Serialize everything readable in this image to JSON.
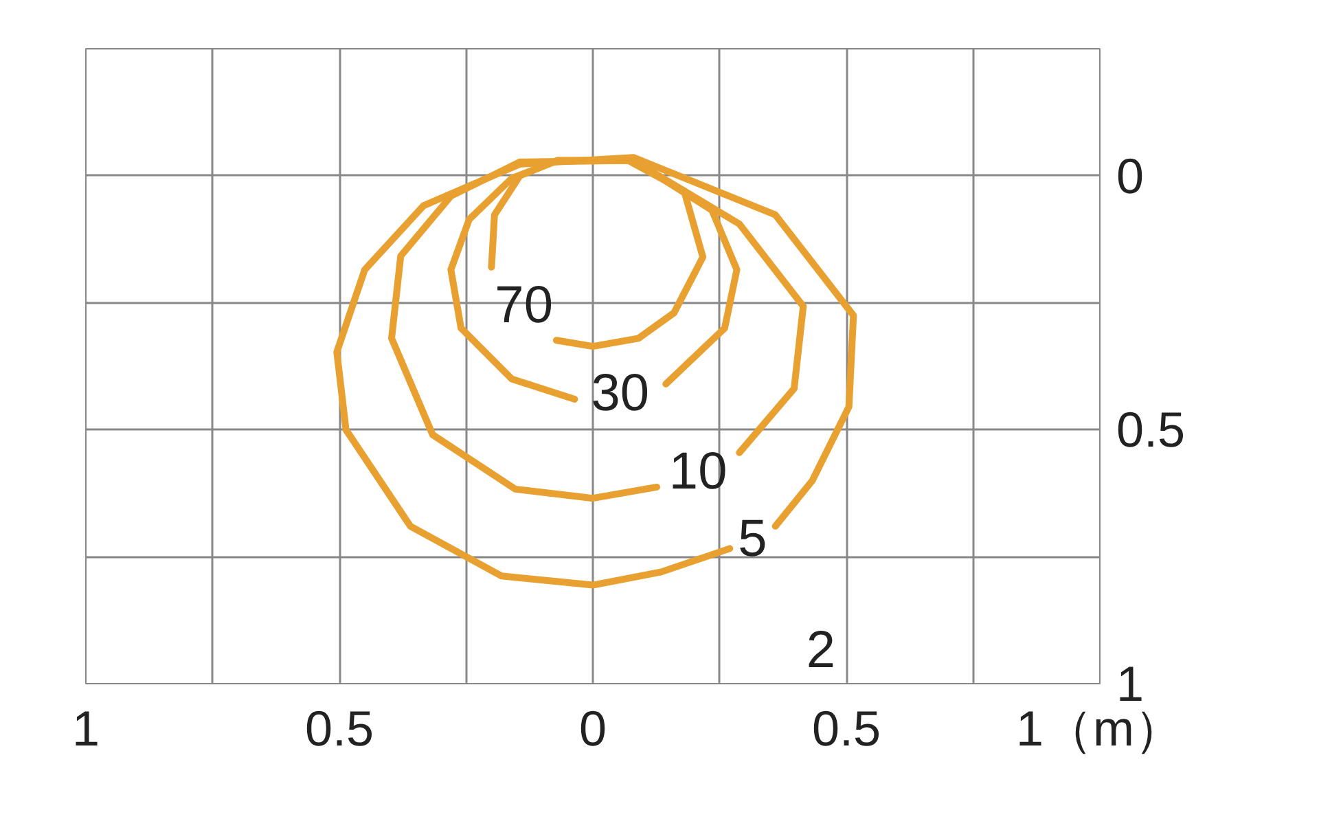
{
  "chart_data": {
    "type": "line",
    "xlim": [
      -1,
      1
    ],
    "ylim": [
      1,
      -0.25
    ],
    "xticks": [
      {
        "value": -1,
        "label": "1"
      },
      {
        "value": -0.75,
        "label": null
      },
      {
        "value": -0.5,
        "label": "0.5"
      },
      {
        "value": -0.25,
        "label": null
      },
      0,
      {
        "value": 0.25,
        "label": null
      },
      0.5,
      {
        "value": 0.75,
        "label": null
      },
      {
        "value": 1,
        "label": "1（m）"
      }
    ],
    "yticks": [
      {
        "value": -0.25,
        "label": null
      },
      0,
      {
        "value": 0.25,
        "label": null
      },
      0.5,
      {
        "value": 0.75,
        "label": null
      },
      1
    ],
    "grid": true,
    "color": "#e8a030",
    "series": [
      {
        "name": "70",
        "x": [
          -0.2,
          -0.194,
          -0.144,
          -0.07,
          0.07,
          0.18,
          0.217,
          0.16,
          0.09,
          0,
          -0.072
        ],
        "values": [
          0.18,
          0.077,
          0,
          -0.03,
          -0.03,
          0.03,
          0.16,
          0.27,
          0.32,
          0.336,
          0.324
        ]
      },
      {
        "name": "30",
        "x": [
          -0.036,
          -0.16,
          -0.26,
          -0.28,
          -0.244,
          -0.16,
          -0.07,
          0.08,
          0.235,
          0.284,
          0.26,
          0.144
        ],
        "values": [
          0.44,
          0.4,
          0.3,
          0.185,
          0.086,
          0.005,
          -0.03,
          -0.03,
          0.068,
          0.185,
          0.3,
          0.41
        ]
      },
      {
        "name": "10",
        "x": [
          0.126,
          0,
          -0.153,
          -0.316,
          -0.397,
          -0.379,
          -0.28,
          -0.144,
          0.08,
          0.289,
          0.415,
          0.397,
          0.289
        ],
        "values": [
          0.613,
          0.635,
          0.617,
          0.51,
          0.32,
          0.158,
          0.04,
          -0.027,
          -0.03,
          0.095,
          0.257,
          0.419,
          0.545
        ]
      },
      {
        "name": "5",
        "x": [
          0.27,
          0.135,
          0,
          -0.18,
          -0.36,
          -0.487,
          -0.505,
          -0.45,
          -0.334,
          -0.144,
          0.08,
          0.36,
          0.514,
          0.505,
          0.433,
          0.36
        ],
        "values": [
          0.734,
          0.78,
          0.806,
          0.788,
          0.69,
          0.5,
          0.347,
          0.185,
          0.059,
          -0.023,
          -0.036,
          0.077,
          0.275,
          0.455,
          0.6,
          0.69
        ]
      }
    ],
    "annotations": [
      "2"
    ]
  }
}
